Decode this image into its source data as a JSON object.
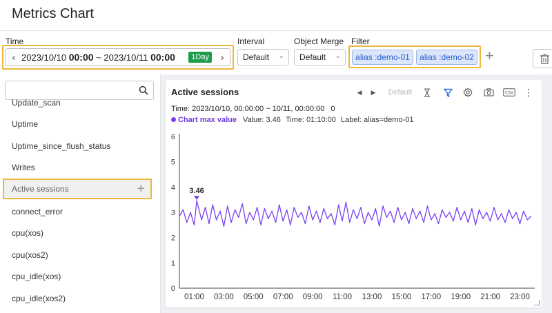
{
  "page_title": "Metrics Chart",
  "toolbar": {
    "time_label": "Time",
    "time_start_date": "2023/10/10",
    "time_start_clock": "00:00",
    "time_separator": "~",
    "time_end_date": "2023/10/11",
    "time_end_clock": "00:00",
    "time_badge": "1Day",
    "interval_label": "Interval",
    "interval_value": "Default",
    "object_merge_label": "Object Merge",
    "object_merge_value": "Default",
    "filter_label": "Filter",
    "filters": [
      "alias :demo-01",
      "alias :demo-02"
    ]
  },
  "sidebar": {
    "search_placeholder": "",
    "items": [
      "Update_scan",
      "Uptime",
      "Uptime_since_flush_status",
      "Writes",
      "Active sessions",
      "connect_error",
      "cpu(xos)",
      "cpu(xos2)",
      "cpu_idle(xos)",
      "cpu_idle(xos2)"
    ],
    "active_index": 4
  },
  "chart_panel": {
    "title": "Active sessions",
    "interval_option": "Default",
    "time_range": "Time: 2023/10/10, 00:00:00 ~ 10/11, 00:00:00",
    "time_range_count": "0",
    "max_label": "Chart max value",
    "max_value_text": "Value: 3.46",
    "max_time_text": "Time: 01:10:00",
    "max_series_text": "Label: alias=demo-01",
    "max_annotation": "3.46"
  },
  "colors": {
    "accent": "#7a3ff2",
    "highlight": "#f0b53b",
    "badge": "#1d9c4a",
    "chip_bg": "#dbe6fb",
    "chip_text": "#2b5fd0"
  },
  "icons": [
    "chevron-left-icon",
    "chevron-right-icon",
    "search-icon",
    "plus-icon",
    "trash-icon",
    "hourglass-icon",
    "filter-icon",
    "gear-icon",
    "camera-icon",
    "csv-icon",
    "more-vertical-icon"
  ],
  "chart_data": {
    "type": "line",
    "title": "Active sessions",
    "xlabel": "",
    "ylabel": "",
    "x_ticks": [
      "01:00",
      "03:00",
      "05:00",
      "07:00",
      "09:00",
      "11:00",
      "13:00",
      "15:00",
      "17:00",
      "19:00",
      "21:00",
      "23:00"
    ],
    "y_ticks": [
      0,
      1,
      2,
      3,
      4,
      5,
      6
    ],
    "ylim": [
      0,
      6
    ],
    "xlim_hours": [
      0,
      24
    ],
    "grid": false,
    "series": [
      {
        "name": "alias=demo-01",
        "color": "#7a3ff2",
        "x_hours": [
          0.0,
          0.25,
          0.5,
          0.75,
          1.0,
          1.17,
          1.5,
          1.75,
          2.0,
          2.25,
          2.5,
          2.75,
          3.0,
          3.25,
          3.5,
          3.75,
          4.0,
          4.25,
          4.5,
          4.75,
          5.0,
          5.25,
          5.5,
          5.75,
          6.0,
          6.25,
          6.5,
          6.75,
          7.0,
          7.25,
          7.5,
          7.75,
          8.0,
          8.25,
          8.5,
          8.75,
          9.0,
          9.25,
          9.5,
          9.75,
          10.0,
          10.25,
          10.5,
          10.75,
          11.0,
          11.25,
          11.5,
          11.75,
          12.0,
          12.25,
          12.5,
          12.75,
          13.0,
          13.25,
          13.5,
          13.75,
          14.0,
          14.25,
          14.5,
          14.75,
          15.0,
          15.25,
          15.5,
          15.75,
          16.0,
          16.25,
          16.5,
          16.75,
          17.0,
          17.25,
          17.5,
          17.75,
          18.0,
          18.25,
          18.5,
          18.75,
          19.0,
          19.25,
          19.5,
          19.75,
          20.0,
          20.25,
          20.5,
          20.75,
          21.0,
          21.25,
          21.5,
          21.75,
          22.0,
          22.25,
          22.5,
          22.75,
          23.0,
          23.25,
          23.5,
          23.75
        ],
        "values": [
          2.85,
          3.1,
          2.6,
          3.0,
          2.5,
          3.46,
          2.7,
          3.2,
          2.55,
          3.3,
          2.7,
          3.05,
          2.45,
          3.25,
          2.6,
          3.1,
          2.8,
          3.35,
          2.55,
          3.0,
          2.7,
          3.2,
          2.5,
          3.15,
          2.75,
          3.05,
          2.6,
          3.3,
          2.65,
          3.1,
          2.5,
          3.2,
          2.8,
          3.0,
          2.55,
          3.25,
          2.7,
          3.05,
          2.6,
          3.15,
          2.75,
          2.95,
          2.5,
          3.3,
          2.65,
          3.4,
          2.6,
          3.1,
          2.75,
          3.2,
          2.55,
          3.0,
          2.7,
          3.15,
          2.45,
          3.25,
          2.8,
          3.05,
          2.6,
          3.2,
          2.7,
          3.0,
          2.55,
          3.15,
          2.75,
          3.05,
          2.6,
          3.25,
          2.7,
          2.95,
          2.55,
          3.1,
          2.8,
          3.0,
          2.65,
          3.2,
          2.7,
          3.05,
          2.6,
          3.15,
          2.5,
          3.1,
          2.75,
          3.0,
          2.65,
          3.2,
          2.7,
          2.95,
          2.6,
          3.1,
          2.75,
          3.0,
          2.55,
          3.05,
          2.7,
          2.85
        ]
      }
    ],
    "max_point": {
      "x_hours": 1.17,
      "value": 3.46
    }
  }
}
